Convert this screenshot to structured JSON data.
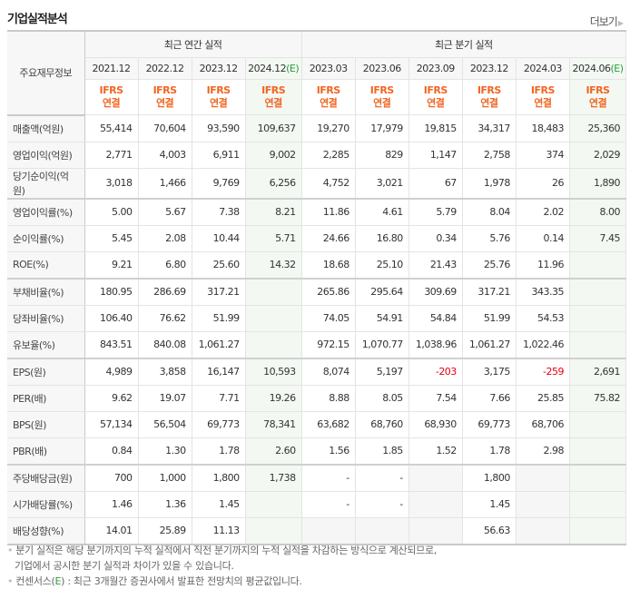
{
  "title": "기업실적분석",
  "more_label": "더보기",
  "corner_label": "주요재무정보",
  "groups": {
    "annual": "최근 연간 실적",
    "quarter": "최근 분기 실적"
  },
  "columns": [
    {
      "date": "2021.12",
      "e": "",
      "ifrs": "IFRS",
      "basis": "연결"
    },
    {
      "date": "2022.12",
      "e": "",
      "ifrs": "IFRS",
      "basis": "연결"
    },
    {
      "date": "2023.12",
      "e": "",
      "ifrs": "IFRS",
      "basis": "연결"
    },
    {
      "date": "2024.12",
      "e": "(E)",
      "ifrs": "IFRS",
      "basis": "연결"
    },
    {
      "date": "2023.03",
      "e": "",
      "ifrs": "IFRS",
      "basis": "연결"
    },
    {
      "date": "2023.06",
      "e": "",
      "ifrs": "IFRS",
      "basis": "연결"
    },
    {
      "date": "2023.09",
      "e": "",
      "ifrs": "IFRS",
      "basis": "연결"
    },
    {
      "date": "2023.12",
      "e": "",
      "ifrs": "IFRS",
      "basis": "연결"
    },
    {
      "date": "2024.03",
      "e": "",
      "ifrs": "IFRS",
      "basis": "연결"
    },
    {
      "date": "2024.06",
      "e": "(E)",
      "ifrs": "IFRS",
      "basis": "연결"
    }
  ],
  "rows": [
    {
      "label": "매출액(억원)",
      "values": [
        "55,414",
        "70,604",
        "93,590",
        "109,637",
        "19,270",
        "17,979",
        "19,815",
        "34,317",
        "18,483",
        "25,360"
      ]
    },
    {
      "label": "영업이익(억원)",
      "values": [
        "2,771",
        "4,003",
        "6,911",
        "9,002",
        "2,285",
        "829",
        "1,147",
        "2,758",
        "374",
        "2,029"
      ]
    },
    {
      "label": "당기순이익(억원)",
      "values": [
        "3,018",
        "1,466",
        "9,769",
        "6,256",
        "4,752",
        "3,021",
        "67",
        "1,978",
        "26",
        "1,890"
      ]
    },
    {
      "label": "영업이익률(%)",
      "values": [
        "5.00",
        "5.67",
        "7.38",
        "8.21",
        "11.86",
        "4.61",
        "5.79",
        "8.04",
        "2.02",
        "8.00"
      ]
    },
    {
      "label": "순이익률(%)",
      "values": [
        "5.45",
        "2.08",
        "10.44",
        "5.71",
        "24.66",
        "16.80",
        "0.34",
        "5.76",
        "0.14",
        "7.45"
      ]
    },
    {
      "label": "ROE(%)",
      "values": [
        "9.21",
        "6.80",
        "25.60",
        "14.32",
        "18.68",
        "25.10",
        "21.43",
        "25.76",
        "11.96",
        ""
      ]
    },
    {
      "label": "부채비율(%)",
      "values": [
        "180.95",
        "286.69",
        "317.21",
        "",
        "265.86",
        "295.64",
        "309.69",
        "317.21",
        "343.35",
        ""
      ]
    },
    {
      "label": "당좌비율(%)",
      "values": [
        "106.40",
        "76.62",
        "51.99",
        "",
        "74.05",
        "54.91",
        "54.84",
        "51.99",
        "54.53",
        ""
      ]
    },
    {
      "label": "유보율(%)",
      "values": [
        "843.51",
        "840.08",
        "1,061.27",
        "",
        "972.15",
        "1,070.77",
        "1,038.96",
        "1,061.27",
        "1,022.46",
        ""
      ]
    },
    {
      "label": "EPS(원)",
      "values": [
        "4,989",
        "3,858",
        "16,147",
        "10,593",
        "8,074",
        "5,197",
        "-203",
        "3,175",
        "-259",
        "2,691"
      ]
    },
    {
      "label": "PER(배)",
      "values": [
        "9.62",
        "19.07",
        "7.71",
        "19.26",
        "8.88",
        "8.05",
        "7.54",
        "7.66",
        "25.85",
        "75.82"
      ]
    },
    {
      "label": "BPS(원)",
      "values": [
        "57,134",
        "56,504",
        "69,773",
        "78,341",
        "63,682",
        "68,760",
        "68,930",
        "69,773",
        "68,706",
        ""
      ]
    },
    {
      "label": "PBR(배)",
      "values": [
        "0.84",
        "1.30",
        "1.78",
        "2.60",
        "1.56",
        "1.85",
        "1.52",
        "1.78",
        "2.98",
        ""
      ]
    },
    {
      "label": "주당배당금(원)",
      "values": [
        "700",
        "1,000",
        "1,800",
        "1,738",
        "-",
        "-",
        "",
        "1,800",
        "",
        ""
      ]
    },
    {
      "label": "시가배당률(%)",
      "values": [
        "1.46",
        "1.36",
        "1.45",
        "",
        "-",
        "-",
        "",
        "1.45",
        "",
        ""
      ]
    },
    {
      "label": "배당성향(%)",
      "values": [
        "14.01",
        "25.89",
        "11.13",
        "",
        "",
        "",
        "",
        "56.63",
        "",
        ""
      ]
    }
  ],
  "notes": {
    "line1": "분기 실적은 해당 분기까지의 누적 실적에서 직전 분기까지의 누적 실적을 차감하는 방식으로 계산되므로,",
    "line2": "기업에서 공시한 분기 실적과 차이가 있을 수 있습니다.",
    "line3_pre": "컨센서스(",
    "line3_e": "E",
    "line3_post": ") : 최근 3개월간 증권사에서 발표한 전망치의 평균값입니다."
  },
  "colors": {
    "accent": "#f26522",
    "negative": "#e60012",
    "consensus_bg": "#f3f8f3",
    "estimate": "#2a9d3a"
  }
}
